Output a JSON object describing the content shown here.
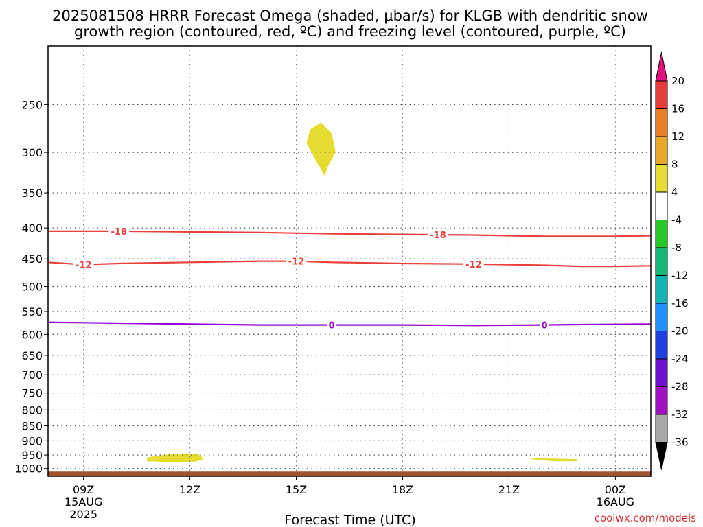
{
  "title_line1": "2025081508 HRRR Forecast Omega (shaded, μbar/s) for KLGB with dendritic snow",
  "title_line2": "growth region (contoured, red, ºC) and freezing level (contoured, purple, ºC)",
  "credit": "coolwx.com/models",
  "chart_data": {
    "type": "contour",
    "title": "2025081508 HRRR Forecast Omega (shaded, μbar/s) for KLGB with dendritic snow growth region (contoured, red, ºC) and freezing level (contoured, purple, ºC)",
    "xlabel": "Forecast Time (UTC)",
    "ylabel": "",
    "x_unit": "hours after 2025-08-15 08Z",
    "xlim": [
      0,
      17
    ],
    "ylim": [
      1030,
      200
    ],
    "y_scale": "log",
    "y_ticks": [
      250,
      300,
      350,
      400,
      450,
      500,
      550,
      600,
      650,
      700,
      750,
      800,
      850,
      900,
      950,
      1000
    ],
    "x_ticks": [
      {
        "x": 1,
        "label": "09Z",
        "sub1": "15AUG",
        "sub2": "2025"
      },
      {
        "x": 4,
        "label": "12Z",
        "sub1": "",
        "sub2": ""
      },
      {
        "x": 7,
        "label": "15Z",
        "sub1": "",
        "sub2": ""
      },
      {
        "x": 10,
        "label": "18Z",
        "sub1": "",
        "sub2": ""
      },
      {
        "x": 13,
        "label": "21Z",
        "sub1": "",
        "sub2": ""
      },
      {
        "x": 16,
        "label": "00Z",
        "sub1": "16AUG",
        "sub2": ""
      }
    ],
    "grid": true,
    "surface_pressure": 1012,
    "surface_color": "#a0522d",
    "contours": [
      {
        "label": "-18",
        "color": "#e8403a",
        "points": [
          [
            0,
            405
          ],
          [
            2,
            405
          ],
          [
            4,
            406
          ],
          [
            6,
            407
          ],
          [
            8,
            409
          ],
          [
            10,
            410
          ],
          [
            12,
            411
          ],
          [
            14,
            413
          ],
          [
            16,
            413
          ],
          [
            17,
            412
          ]
        ],
        "labels_at": [
          2,
          11
        ]
      },
      {
        "label": "-12",
        "color": "#e8403a",
        "points": [
          [
            0,
            456
          ],
          [
            1,
            460
          ],
          [
            2,
            458
          ],
          [
            4,
            456
          ],
          [
            6,
            454
          ],
          [
            7,
            454
          ],
          [
            8,
            456
          ],
          [
            10,
            458
          ],
          [
            12,
            459
          ],
          [
            14,
            461
          ],
          [
            15,
            463
          ],
          [
            16,
            463
          ],
          [
            17,
            462
          ]
        ],
        "labels_at": [
          1,
          7,
          12
        ]
      },
      {
        "label": "0",
        "color": "#9400d3",
        "points": [
          [
            0,
            573
          ],
          [
            2,
            575
          ],
          [
            4,
            577
          ],
          [
            6,
            579
          ],
          [
            8,
            579
          ],
          [
            10,
            579
          ],
          [
            12,
            580
          ],
          [
            14,
            579
          ],
          [
            15,
            578
          ],
          [
            17,
            577
          ]
        ],
        "labels_at": [
          8,
          14
        ]
      }
    ],
    "shaded_regions": [
      {
        "value_range": [
          4,
          8
        ],
        "color": "#e6dc32",
        "points": [
          [
            7.7,
            268
          ],
          [
            8.0,
            280
          ],
          [
            8.1,
            300
          ],
          [
            7.9,
            315
          ],
          [
            7.8,
            327
          ],
          [
            7.6,
            312
          ],
          [
            7.3,
            290
          ],
          [
            7.4,
            275
          ]
        ]
      },
      {
        "value_range": [
          4,
          8
        ],
        "color": "#e6dc32",
        "points": [
          [
            2.8,
            960
          ],
          [
            3.3,
            950
          ],
          [
            3.9,
            945
          ],
          [
            4.3,
            950
          ],
          [
            4.35,
            965
          ],
          [
            4.1,
            975
          ],
          [
            3.3,
            974
          ],
          [
            2.8,
            972
          ]
        ]
      },
      {
        "value_range": [
          4,
          8
        ],
        "color": "#e6dc32",
        "points": [
          [
            13.6,
            962
          ],
          [
            14.3,
            964
          ],
          [
            14.9,
            966
          ],
          [
            14.9,
            972
          ],
          [
            14.3,
            972
          ],
          [
            13.8,
            967
          ]
        ]
      }
    ],
    "colorbar": {
      "tick_labels": [
        "20",
        "16",
        "12",
        "8",
        "4",
        "-4",
        "-8",
        "-12",
        "-16",
        "-20",
        "-24",
        "-28",
        "-32",
        "-36"
      ],
      "top_color": "#e3107e",
      "bottom_color": "#000000",
      "colors": [
        "#e83c3c",
        "#e87e28",
        "#e8a828",
        "#e6dc32",
        "#ffffff",
        "#28c828",
        "#14b878",
        "#12b4b4",
        "#1e90ff",
        "#2040e0",
        "#7010d0",
        "#a010c0",
        "#a8a8a8"
      ]
    }
  }
}
